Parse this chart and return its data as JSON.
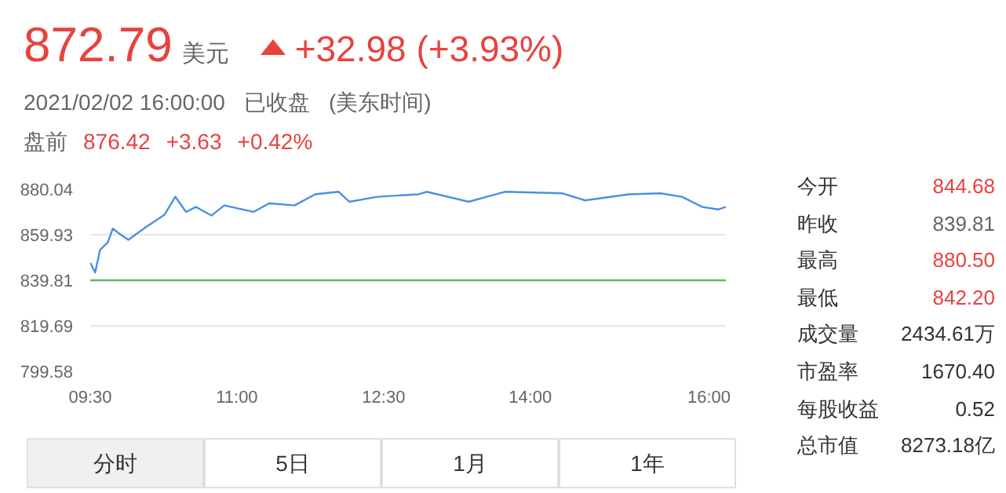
{
  "chart_data": {
    "type": "line",
    "x": [
      9.5,
      9.55,
      9.6,
      9.68,
      9.73,
      9.81,
      9.89,
      10.07,
      10.26,
      10.37,
      10.48,
      10.58,
      10.74,
      10.87,
      11.17,
      11.33,
      11.59,
      11.8,
      12.04,
      12.15,
      12.44,
      12.86,
      12.94,
      13.37,
      13.74,
      14.33,
      14.56,
      15.01,
      15.33,
      15.55,
      15.76,
      15.92,
      16.0
    ],
    "series": [
      {
        "color": "#4a90e2",
        "values": [
          847.6,
          843.2,
          853.2,
          856.6,
          862.6,
          860.0,
          857.7,
          863.3,
          868.8,
          876.7,
          870.0,
          872.2,
          868.4,
          872.9,
          870.0,
          873.8,
          872.9,
          877.8,
          878.9,
          874.5,
          876.7,
          877.8,
          878.9,
          874.5,
          878.9,
          878.2,
          875.1,
          877.8,
          878.2,
          876.7,
          872.2,
          871.1,
          872.2
        ]
      }
    ],
    "xlim": [
      9.5,
      16.0
    ],
    "xticks": [
      {
        "value": 9.5,
        "label": "09:30"
      },
      {
        "value": 11,
        "label": "11:00"
      },
      {
        "value": 12.5,
        "label": "12:30"
      },
      {
        "value": 14,
        "label": "14:00"
      },
      {
        "value": 16,
        "label": "16:00"
      }
    ],
    "ylim": [
      799.58,
      880.04
    ],
    "yticks": [
      799.58,
      819.69,
      839.81,
      859.93,
      880.04
    ],
    "grid": "y",
    "marker": "none",
    "line_style": "solid",
    "ref_lines": [
      {
        "axis": "y",
        "value": 839.81,
        "color": "#5cb85c"
      }
    ],
    "annotations": [
      "872.79",
      "美元",
      "+32.98 (+3.93%)",
      "2021/02/02 16:00:00",
      "已收盘",
      "(美东时间)",
      "盘前",
      "876.42",
      "+3.63",
      "+0.42%",
      "今开",
      "844.68",
      "昨收",
      "839.81",
      "最高",
      "880.50",
      "最低",
      "842.20",
      "成交量",
      "2434.61万",
      "市盈率",
      "1670.40",
      "每股收益",
      "0.52",
      "总市值",
      "8273.18亿",
      "分时",
      "5日",
      "1月",
      "1年"
    ]
  }
}
